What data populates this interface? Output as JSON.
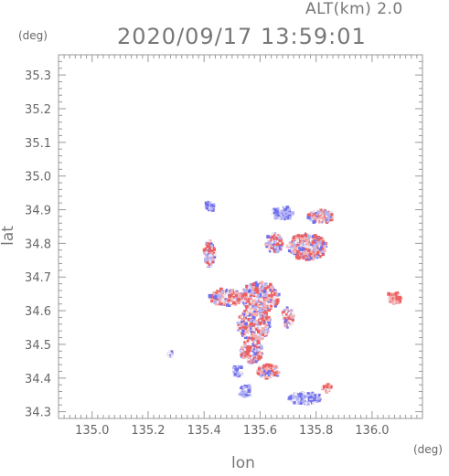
{
  "header": {
    "altitude_label": "ALT(km) 2.0",
    "datetime": "2020/09/17 13:59:01"
  },
  "axes": {
    "y_unit": "(deg)",
    "x_unit": "(deg)",
    "xlabel": "lon",
    "ylabel": "lat"
  },
  "chart_data": {
    "type": "heatmap",
    "title": "",
    "xlabel": "lon",
    "ylabel": "lat",
    "xlim": [
      134.88,
      136.18
    ],
    "ylim": [
      34.28,
      35.36
    ],
    "x_ticks": [
      {
        "value": 135.0,
        "label": "135.0"
      },
      {
        "value": 135.2,
        "label": "135.2"
      },
      {
        "value": 135.4,
        "label": "135.4"
      },
      {
        "value": 135.6,
        "label": "135.6"
      },
      {
        "value": 135.8,
        "label": "135.8"
      },
      {
        "value": 136.0,
        "label": "136.0"
      }
    ],
    "y_ticks": [
      {
        "value": 34.3,
        "label": "34.3"
      },
      {
        "value": 34.4,
        "label": "34.4"
      },
      {
        "value": 34.5,
        "label": "34.5"
      },
      {
        "value": 34.6,
        "label": "34.6"
      },
      {
        "value": 34.7,
        "label": "34.7"
      },
      {
        "value": 34.8,
        "label": "34.8"
      },
      {
        "value": 34.9,
        "label": "34.9"
      },
      {
        "value": 35.0,
        "label": "35.0"
      },
      {
        "value": 35.1,
        "label": "35.1"
      },
      {
        "value": 35.2,
        "label": "35.2"
      },
      {
        "value": 35.3,
        "label": "35.3"
      }
    ],
    "grid": false,
    "colors": {
      "positive": "#ee6060",
      "negative": "#7070ee",
      "light_positive": "#f4b0b0",
      "light_negative": "#b4b4f4",
      "neutral": "#f0e8f0",
      "axis": "#999999"
    },
    "regions": [
      {
        "lon": 135.6,
        "lat": 34.64,
        "rlon": 0.07,
        "rlat": 0.045,
        "sign": "mixed"
      },
      {
        "lon": 135.58,
        "lat": 34.56,
        "rlon": 0.06,
        "rlat": 0.05,
        "sign": "mixed"
      },
      {
        "lon": 135.57,
        "lat": 34.48,
        "rlon": 0.04,
        "rlat": 0.035,
        "sign": "mixed"
      },
      {
        "lon": 135.48,
        "lat": 34.64,
        "rlon": 0.06,
        "rlat": 0.025,
        "sign": "mixed"
      },
      {
        "lon": 135.77,
        "lat": 34.79,
        "rlon": 0.07,
        "rlat": 0.04,
        "sign": "mixed"
      },
      {
        "lon": 135.82,
        "lat": 34.88,
        "rlon": 0.05,
        "rlat": 0.02,
        "sign": "mixed"
      },
      {
        "lon": 135.68,
        "lat": 34.89,
        "rlon": 0.04,
        "rlat": 0.02,
        "sign": "negative"
      },
      {
        "lon": 135.65,
        "lat": 34.8,
        "rlon": 0.03,
        "rlat": 0.03,
        "sign": "mixed"
      },
      {
        "lon": 136.08,
        "lat": 34.64,
        "rlon": 0.025,
        "rlat": 0.018,
        "sign": "positive"
      },
      {
        "lon": 135.76,
        "lat": 34.34,
        "rlon": 0.06,
        "rlat": 0.018,
        "sign": "negative"
      },
      {
        "lon": 135.55,
        "lat": 34.36,
        "rlon": 0.025,
        "rlat": 0.02,
        "sign": "negative"
      },
      {
        "lon": 135.28,
        "lat": 34.47,
        "rlon": 0.012,
        "rlat": 0.01,
        "sign": "negative"
      },
      {
        "lon": 135.42,
        "lat": 34.91,
        "rlon": 0.02,
        "rlat": 0.015,
        "sign": "negative"
      },
      {
        "lon": 135.42,
        "lat": 34.77,
        "rlon": 0.02,
        "rlat": 0.04,
        "sign": "mixed"
      },
      {
        "lon": 135.52,
        "lat": 34.42,
        "rlon": 0.02,
        "rlat": 0.015,
        "sign": "negative"
      },
      {
        "lon": 135.84,
        "lat": 34.37,
        "rlon": 0.02,
        "rlat": 0.012,
        "sign": "positive"
      },
      {
        "lon": 135.63,
        "lat": 34.42,
        "rlon": 0.04,
        "rlat": 0.02,
        "sign": "mixed"
      },
      {
        "lon": 135.7,
        "lat": 34.58,
        "rlon": 0.02,
        "rlat": 0.03,
        "sign": "mixed"
      }
    ]
  }
}
